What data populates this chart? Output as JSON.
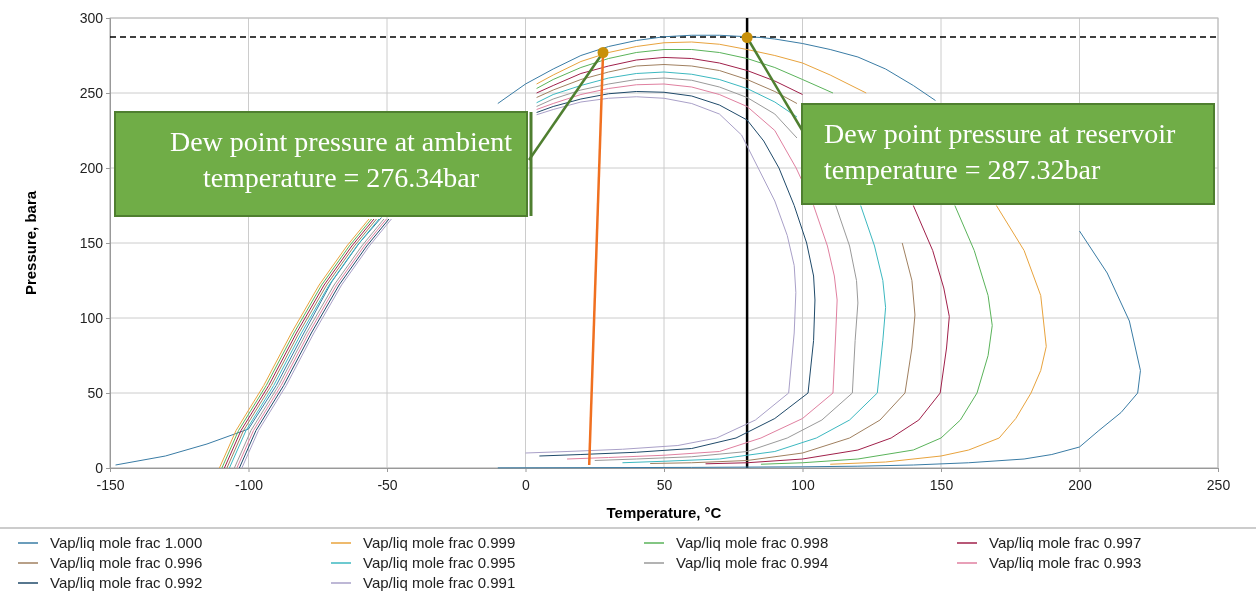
{
  "chart_data": {
    "type": "line",
    "xlabel": "Temperature, °C",
    "ylabel": "Pressure, bara",
    "xlim": [
      -150,
      250
    ],
    "ylim": [
      0,
      300
    ],
    "xticks": [
      -150,
      -100,
      -50,
      0,
      50,
      100,
      150,
      200,
      250
    ],
    "yticks": [
      0,
      50,
      100,
      150,
      200,
      250,
      300
    ],
    "grid": true,
    "legend": "bottom",
    "series": [
      {
        "name": "Vap/liq mole frac 1.000",
        "color": "#3a7ca5",
        "x": [
          -148,
          -130,
          -115,
          -100,
          -90,
          -80,
          -70,
          -60,
          -52,
          -40,
          -30,
          -20,
          -10,
          0,
          10,
          20,
          30,
          40,
          50,
          60,
          70,
          85,
          90,
          100,
          110,
          120,
          130,
          140,
          148,
          160,
          170,
          180,
          190,
          200,
          210,
          218,
          222,
          221,
          215,
          207,
          200,
          190,
          180,
          160,
          140,
          120,
          100,
          60,
          20,
          -10
        ],
        "values": [
          2,
          8,
          16,
          26,
          55,
          90,
          124,
          150,
          167,
          null,
          null,
          null,
          243,
          256,
          266,
          275,
          281,
          285,
          287.5,
          288.5,
          288.5,
          287,
          286,
          283,
          279,
          274,
          266,
          255,
          245,
          null,
          null,
          null,
          null,
          158,
          130,
          98,
          65,
          50,
          37,
          25,
          14,
          9,
          6,
          3.5,
          2,
          1.2,
          0.8,
          0.4,
          0.2,
          0.1
        ]
      },
      {
        "name": "Vap/liq mole frac 0.999",
        "color": "#e8a33d",
        "x": [
          -110.5,
          -104.5,
          -94.5,
          -84.5,
          -74.5,
          -64.5,
          -56.5,
          -40,
          -30,
          -20,
          -10,
          4,
          10,
          20,
          30,
          40,
          50,
          60,
          70,
          80,
          90,
          100,
          110,
          123,
          135,
          147,
          159,
          170,
          180,
          186,
          188,
          186,
          182.5,
          177,
          171,
          160,
          150,
          130,
          110
        ],
        "values": [
          0,
          25,
          55,
          90,
          122,
          148,
          166,
          null,
          null,
          null,
          null,
          256,
          262,
          271,
          277,
          281,
          283.5,
          284,
          282.5,
          279,
          275,
          270,
          262,
          250,
          null,
          null,
          null,
          175,
          145,
          115,
          81,
          65,
          50,
          33,
          20,
          12,
          8,
          4,
          2.5
        ]
      },
      {
        "name": "Vap/liq mole frac 0.998",
        "color": "#5ab35a",
        "x": [
          -109.6,
          -103.6,
          -93.6,
          -83.6,
          -73.6,
          -63.6,
          -55.6,
          -40,
          -30,
          -20,
          -10,
          4,
          10,
          20,
          30,
          40,
          50,
          60,
          70,
          80,
          90,
          100,
          111,
          120,
          130,
          140,
          146,
          155,
          162,
          167,
          168.5,
          167,
          163,
          157,
          150,
          140,
          120,
          100,
          85
        ],
        "values": [
          0,
          25,
          55,
          90,
          122,
          148,
          166,
          null,
          null,
          null,
          null,
          253,
          259,
          267,
          273,
          277,
          279,
          279,
          277,
          273,
          267,
          259,
          250,
          null,
          null,
          null,
          null,
          175,
          145,
          115,
          95,
          75,
          50,
          32,
          20,
          12,
          6,
          3.5,
          2.5
        ]
      },
      {
        "name": "Vap/liq mole frac 0.997",
        "color": "#a0204a",
        "x": [
          -108.7,
          -102.7,
          -92.7,
          -82.7,
          -72.7,
          -62.7,
          -54.7,
          -40,
          -30,
          -20,
          -10,
          4,
          10,
          20,
          30,
          40,
          50,
          60,
          70,
          80,
          90,
          100,
          110,
          120,
          132,
          140,
          147,
          151,
          153,
          152,
          149.7,
          142,
          132,
          120,
          100,
          80,
          65
        ],
        "values": [
          0,
          25,
          55,
          90,
          122,
          148,
          166,
          null,
          null,
          null,
          null,
          250,
          255,
          263,
          268,
          272,
          273.7,
          273,
          270,
          265,
          258,
          249,
          null,
          null,
          null,
          175,
          145,
          120,
          101,
          80,
          50,
          32,
          20,
          12,
          6,
          3.5,
          2.8
        ]
      },
      {
        "name": "Vap/liq mole frac 0.996",
        "color": "#a08060",
        "x": [
          -107.8,
          -101.8,
          -91.8,
          -81.8,
          -71.8,
          -61.8,
          -53.8,
          -40,
          -30,
          -20,
          -10,
          4,
          10,
          20,
          30,
          40,
          50,
          60,
          70,
          80,
          90,
          98,
          110,
          123,
          130,
          136,
          139.5,
          140.6,
          139.5,
          137,
          128,
          117,
          100,
          80,
          60,
          45
        ],
        "values": [
          0,
          25,
          55,
          90,
          122,
          148,
          166,
          null,
          null,
          null,
          null,
          247,
          252,
          259,
          264,
          268,
          269,
          268,
          265,
          259,
          251,
          243,
          null,
          null,
          null,
          150,
          125,
          102,
          80,
          50,
          32,
          20,
          10,
          5,
          3.5,
          3
        ]
      },
      {
        "name": "Vap/liq mole frac 0.995",
        "color": "#3cb8c0",
        "x": [
          -106.9,
          -100.9,
          -90.9,
          -80.9,
          -70.9,
          -60.9,
          -52.9,
          -40,
          -30,
          -20,
          -10,
          4,
          10,
          20,
          30,
          40,
          50,
          60,
          70,
          80,
          90,
          98,
          107,
          114,
          121,
          126,
          129,
          130,
          129,
          127,
          117,
          105,
          90,
          70,
          50,
          35
        ],
        "values": [
          0,
          25,
          55,
          90,
          122,
          148,
          166,
          null,
          null,
          null,
          null,
          243.5,
          249,
          255,
          260,
          263,
          264,
          262.5,
          259,
          253,
          244,
          234,
          null,
          null,
          175,
          148,
          125,
          107,
          85,
          50,
          32,
          20,
          11,
          6,
          4.5,
          3.5
        ]
      },
      {
        "name": "Vap/liq mole frac 0.994",
        "color": "#9a9a9a",
        "x": [
          -105.1,
          -99.1,
          -89.1,
          -79.1,
          -69.1,
          -59.1,
          -51.1,
          -40,
          -30,
          -20,
          -10,
          4,
          10,
          20,
          30,
          40,
          50,
          60,
          70,
          80,
          90,
          98,
          105,
          112,
          117,
          119.5,
          120,
          119,
          118,
          107,
          94.5,
          80,
          60,
          40,
          25
        ],
        "values": [
          0,
          25,
          55,
          90,
          122,
          148,
          166,
          null,
          null,
          null,
          null,
          241,
          246,
          252,
          256,
          259,
          260,
          258.5,
          254,
          247,
          236,
          220,
          null,
          175,
          148,
          125,
          110,
          85,
          50,
          32,
          20,
          11,
          7.5,
          6,
          5
        ]
      },
      {
        "name": "Vap/liq mole frac 0.993",
        "color": "#e080a0",
        "x": [
          -104.2,
          -98.2,
          -88.2,
          -78.2,
          -68.2,
          -58.2,
          -50.2,
          -40,
          -30,
          -20,
          -10,
          4,
          10,
          20,
          30,
          40,
          50,
          60,
          70,
          80,
          90,
          97.7,
          104,
          109,
          111.5,
          112.5,
          112,
          111,
          100,
          85,
          70,
          50,
          30,
          15
        ],
        "values": [
          0,
          25,
          55,
          90,
          122,
          148,
          166,
          null,
          null,
          null,
          null,
          239,
          243,
          249,
          253,
          255.5,
          256,
          254,
          249,
          241,
          225,
          200,
          175,
          148,
          128,
          112,
          90,
          50,
          33,
          20,
          11,
          8.5,
          7,
          6
        ]
      },
      {
        "name": "Vap/liq mole frac 0.992",
        "color": "#1f4a6a",
        "x": [
          -103.3,
          -97.3,
          -87.3,
          -77.3,
          -67.3,
          -57.3,
          -49.3,
          -40,
          -30,
          -20,
          -10,
          4,
          10,
          20,
          30,
          40,
          50,
          60,
          70,
          80,
          86,
          91.5,
          97,
          101.5,
          104,
          104.5,
          104,
          102,
          90,
          76,
          60,
          40,
          20,
          5
        ],
        "values": [
          0,
          25,
          55,
          90,
          122,
          148,
          166,
          null,
          null,
          null,
          null,
          237,
          241,
          246,
          249.5,
          251,
          250.5,
          248,
          242,
          232,
          218,
          200,
          175,
          150,
          128,
          112,
          85,
          50,
          33,
          20,
          13,
          10.5,
          9,
          8
        ]
      },
      {
        "name": "Vap/liq mole frac 0.991",
        "color": "#a9a0c8",
        "x": [
          -102.4,
          -96.4,
          -86.4,
          -76.4,
          -66.4,
          -56.4,
          -48.4,
          -40,
          -30,
          -20,
          -10,
          4,
          10,
          20,
          30,
          40,
          50,
          60,
          70,
          78,
          84,
          90,
          94.5,
          97,
          97.6,
          97,
          95,
          83,
          69,
          55,
          35,
          15,
          0
        ],
        "values": [
          0,
          25,
          55,
          90,
          122,
          148,
          166,
          null,
          null,
          null,
          null,
          235.5,
          239,
          244,
          246.5,
          247.5,
          246.5,
          243,
          236,
          222,
          200,
          178,
          155,
          135,
          117,
          90,
          50,
          32,
          20,
          15,
          12.5,
          11,
          10
        ]
      },
      {
        "color": "#f07020",
        "x": [
          23,
          28
        ],
        "values": [
          2,
          277
        ]
      },
      {
        "type": "scatter",
        "color": "#c8900a",
        "x": [
          28,
          80
        ],
        "values": [
          277,
          287
        ]
      }
    ],
    "ref_lines": [
      {
        "axis": "y",
        "value": 287.32,
        "color": "#000000",
        "line_style": "dashed"
      },
      {
        "axis": "x",
        "value": 80,
        "color": "#000000",
        "line_style": "solid"
      }
    ],
    "annotations": [
      {
        "text": "Dew point pressure at ambient temperature = 276.34bar",
        "x": 28,
        "y": 277
      },
      {
        "text": "Dew point pressure at reservoir temperature = 287.32bar",
        "x": 80,
        "y": 287
      }
    ]
  }
}
